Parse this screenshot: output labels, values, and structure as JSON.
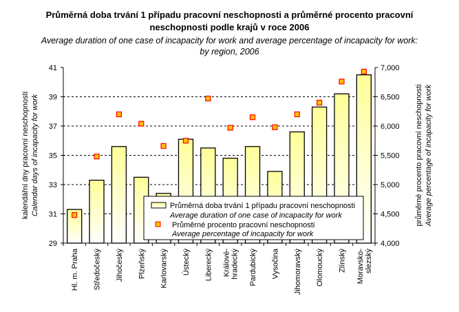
{
  "chart_data": {
    "type": "bar",
    "title": "Průměrná doba trvání 1 případu pracovní neschopnosti a průměrné procento pracovní neschopnosti podle krajů v roce 2006",
    "title_lines": [
      "Průměrná doba trvání 1 případu pracovní neschopnosti a průměrné procento pracovní",
      "neschopnosti podle krajů v roce 2006"
    ],
    "subtitle_lines": [
      "Average duration of one case of incapacity for work and average percentage of incapacity for work:",
      "by region, 2006"
    ],
    "categories": [
      "Hl. m. Praha",
      "Středočeský",
      "Jihočeský",
      "Plzeňský",
      "Karlovarský",
      "Ústecký",
      "Liberecký",
      "Králové-|hradecký",
      "Pardubický",
      "Vysočina",
      "Jihomoravský",
      "Olomoucký",
      "Zlínský",
      "Moravsko-|slezský"
    ],
    "series": [
      {
        "name": "Průměrná doba trvání 1 případu pracovní neschopnosti",
        "name_en": "Average duration of one case of incapacity for work",
        "type": "bar",
        "axis": "left",
        "values": [
          31.3,
          33.3,
          35.6,
          33.5,
          32.4,
          36.1,
          35.5,
          34.8,
          35.6,
          33.9,
          36.6,
          38.3,
          39.2,
          40.5
        ]
      },
      {
        "name": "Průměrné procento pracovní neschopnosti",
        "name_en": "Average percentage of incapacity for work",
        "type": "scatter",
        "axis": "right",
        "values": [
          4.48,
          5.48,
          6.2,
          6.04,
          5.66,
          5.75,
          6.47,
          5.97,
          6.15,
          5.98,
          6.2,
          6.4,
          6.76,
          6.93
        ]
      }
    ],
    "ylabel": [
      "kalendářní dny pracovní neschopnosti",
      "Calendar days of incapacity for work"
    ],
    "y2label": [
      "průměrné procento pracovní neschopnosti",
      "Average percentage of incapacity for work"
    ],
    "ylim": [
      29,
      41
    ],
    "yticks": [
      "29",
      "31",
      "33",
      "35",
      "37",
      "39",
      "41"
    ],
    "y2lim": [
      4,
      7
    ],
    "y2ticks": [
      "4,000",
      "4,500",
      "5,000",
      "5,500",
      "6,000",
      "6,500",
      "7,000"
    ],
    "grid": "horizontal dashed",
    "legend": "bottom-center",
    "colors": {
      "bar_top": "#ffff99",
      "bar_bottom": "#ffffff",
      "marker_fill": "#ffc000",
      "marker_edge": "#ff0000"
    }
  }
}
